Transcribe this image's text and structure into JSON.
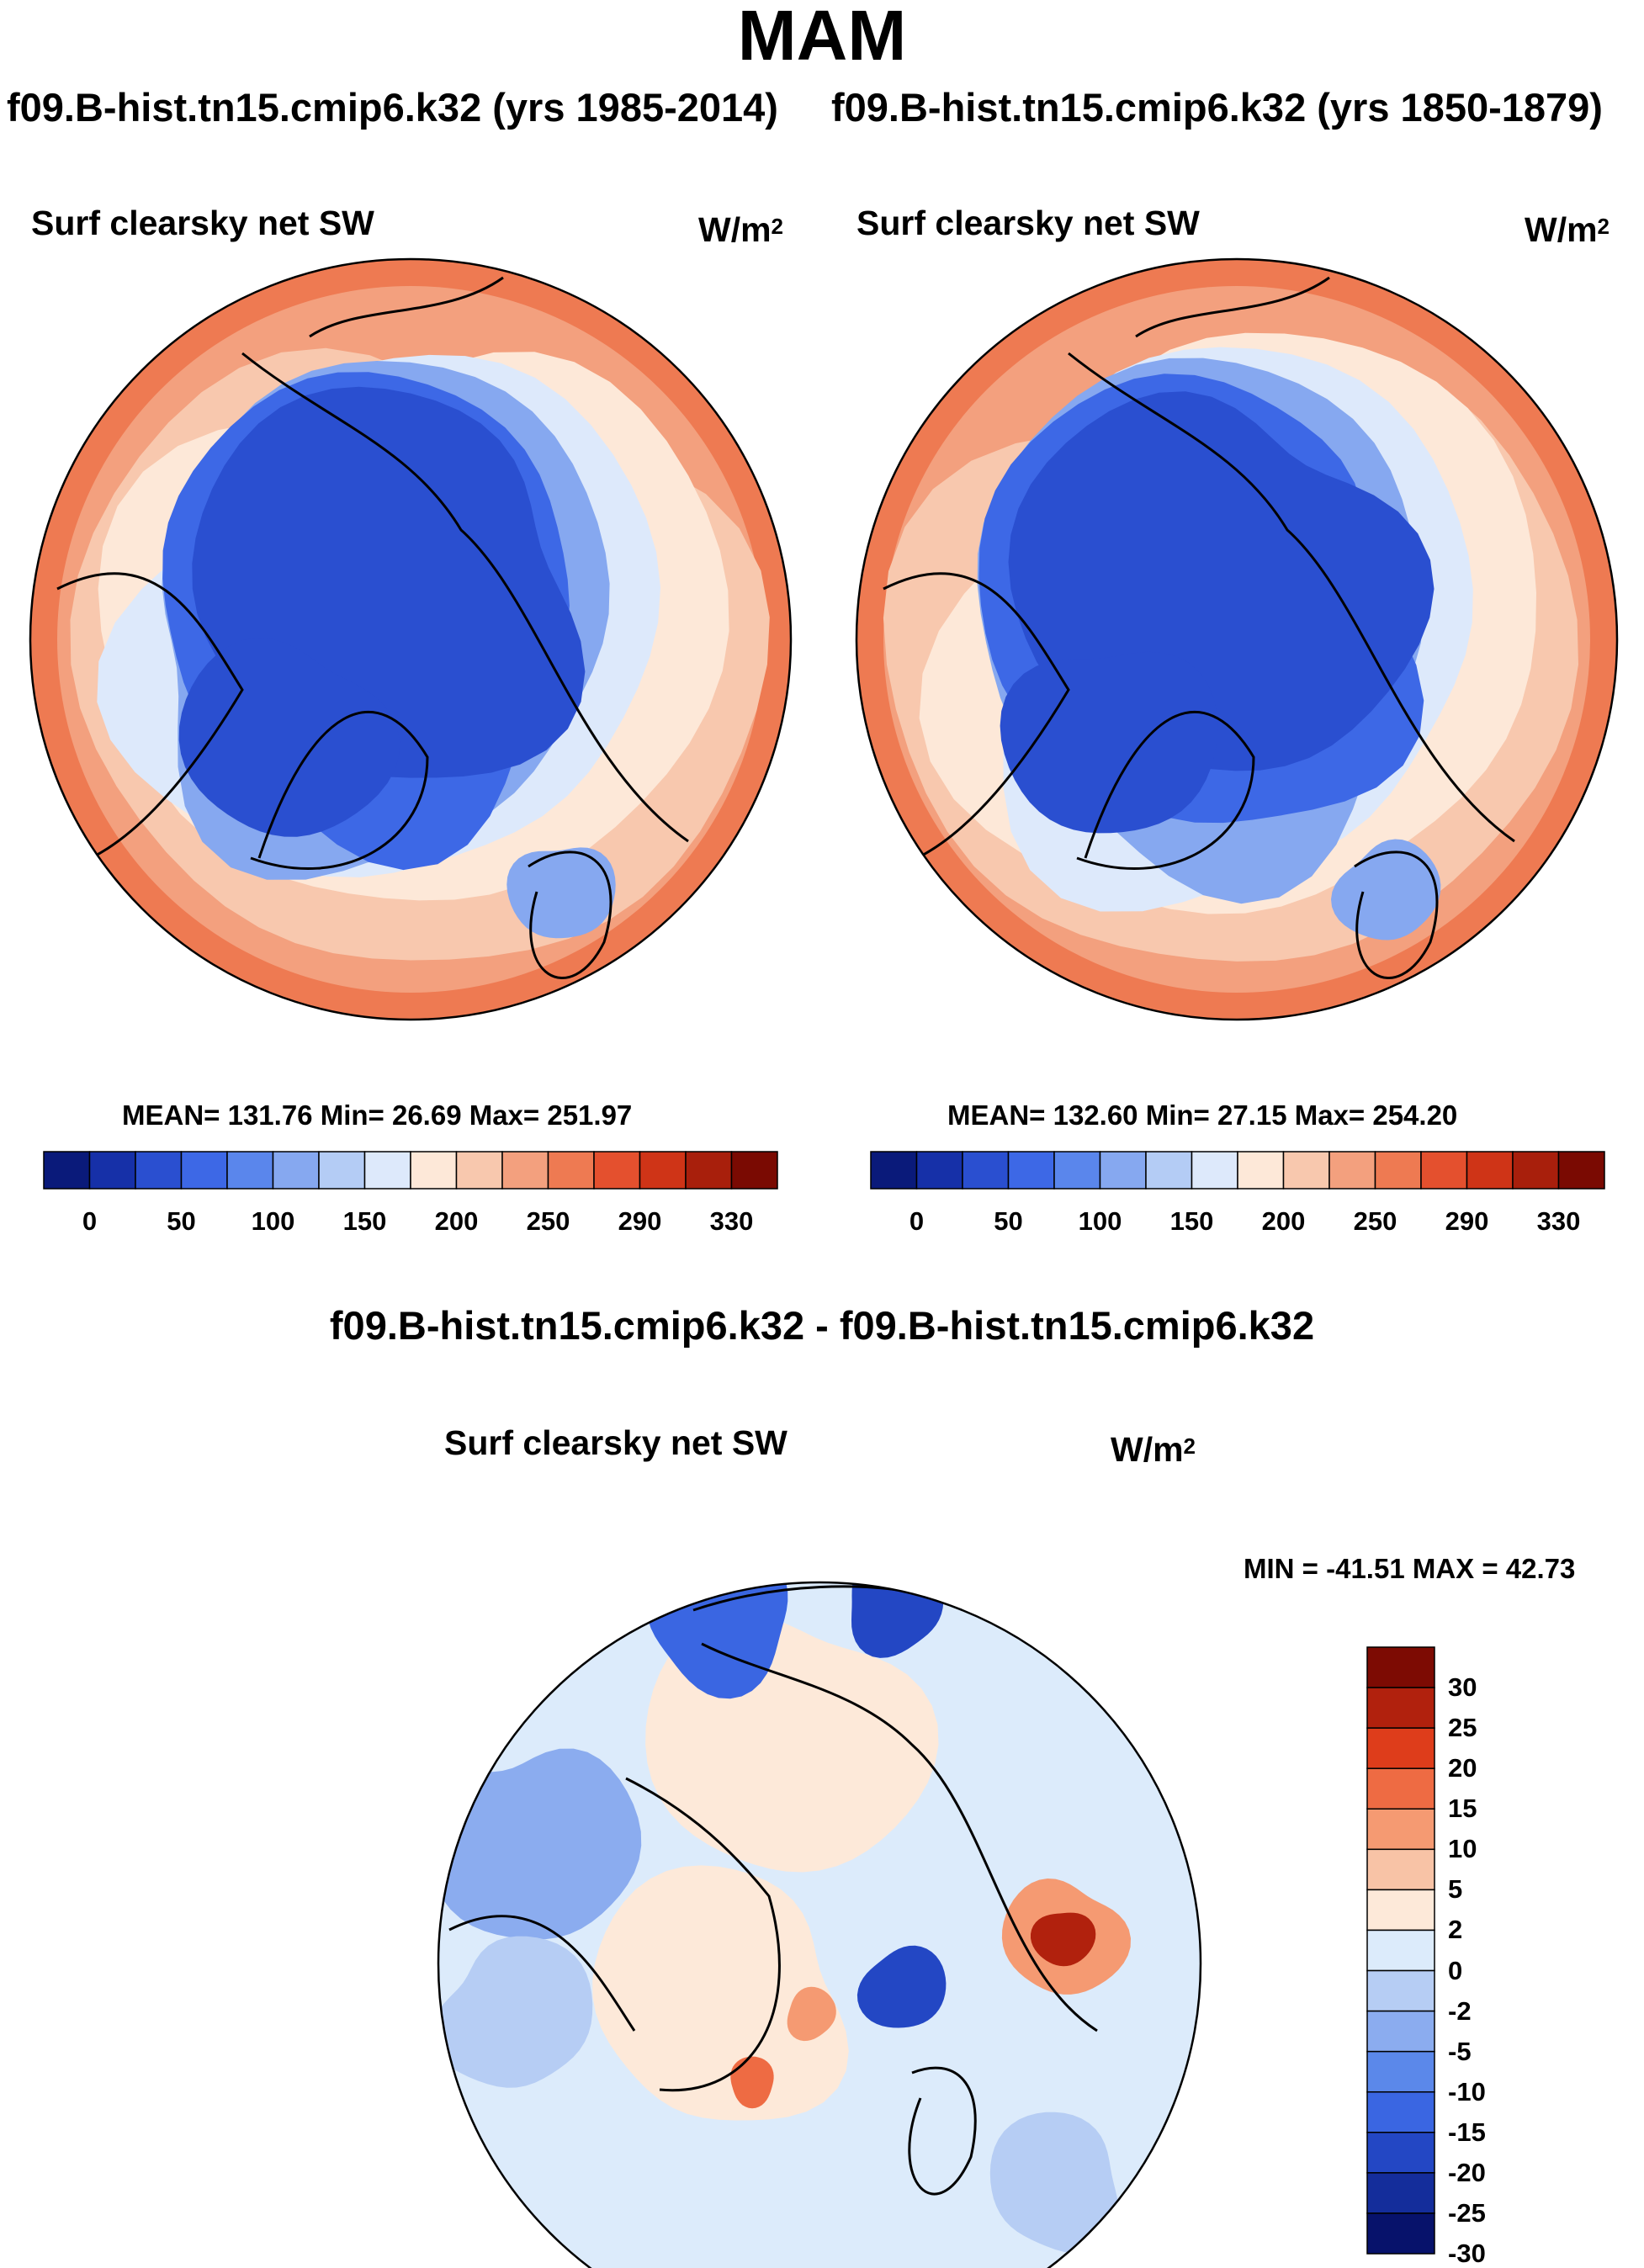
{
  "figure": {
    "season": "MAM",
    "case_left": "f09.B-hist.tn15.cmip6.k32 (yrs 1985-2014)",
    "case_right": "f09.B-hist.tn15.cmip6.k32 (yrs 1850-1879)",
    "diff_title": "f09.B-hist.tn15.cmip6.k32 - f09.B-hist.tn15.cmip6.k32"
  },
  "panels": [
    {
      "title": "Surf clearsky net SW",
      "units_base": "W/m",
      "units_exp": "2",
      "stats": "MEAN= 131.76  Min=  26.69  Max= 251.97"
    },
    {
      "title": "Surf clearsky net SW",
      "units_base": "W/m",
      "units_exp": "2",
      "stats": "MEAN= 132.60  Min=  27.15  Max= 254.20"
    },
    {
      "title": "Surf clearsky net SW",
      "units_base": "W/m",
      "units_exp": "2",
      "stats": "MIN = -41.51 MAX =  42.73"
    }
  ],
  "chart_data": [
    {
      "type": "heatmap",
      "projection": "north polar stereographic",
      "title": "Surf clearsky net SW",
      "units": "W/m2",
      "mean": 131.76,
      "min": 26.69,
      "max": 251.97,
      "colorbar": {
        "tick_labels": [
          "0",
          "50",
          "100",
          "150",
          "200",
          "250",
          "290",
          "330"
        ],
        "colors": [
          "#0a1a7a",
          "#1630a8",
          "#2a4fd0",
          "#3d68e6",
          "#5a86ec",
          "#86a8f0",
          "#b4ccf5",
          "#dde9fb",
          "#fde8d8",
          "#f8c8ae",
          "#f3a07e",
          "#ee7a52",
          "#e4502e",
          "#cf3417",
          "#a81f0c",
          "#7a0a02"
        ]
      }
    },
    {
      "type": "heatmap",
      "projection": "north polar stereographic",
      "title": "Surf clearsky net SW",
      "units": "W/m2",
      "mean": 132.6,
      "min": 27.15,
      "max": 254.2,
      "colorbar": {
        "tick_labels": [
          "0",
          "50",
          "100",
          "150",
          "200",
          "250",
          "290",
          "330"
        ],
        "colors": [
          "#0a1a7a",
          "#1630a8",
          "#2a4fd0",
          "#3d68e6",
          "#5a86ec",
          "#86a8f0",
          "#b4ccf5",
          "#dde9fb",
          "#fde8d8",
          "#f8c8ae",
          "#f3a07e",
          "#ee7a52",
          "#e4502e",
          "#cf3417",
          "#a81f0c",
          "#7a0a02"
        ]
      }
    },
    {
      "type": "heatmap",
      "projection": "north polar stereographic",
      "title": "Surf clearsky net SW",
      "units": "W/m2",
      "min": -41.51,
      "max": 42.73,
      "colorbar": {
        "tick_labels": [
          "30",
          "25",
          "20",
          "15",
          "10",
          "5",
          "2",
          "0",
          "-2",
          "-5",
          "-10",
          "-15",
          "-20",
          "-25",
          "-30"
        ],
        "colors": [
          "#7d0b03",
          "#b1210d",
          "#de3d1b",
          "#ee6b43",
          "#f59a72",
          "#f8c3a6",
          "#fde9d9",
          "#dcebfb",
          "#b6cdf4",
          "#8bacef",
          "#5b88ea",
          "#3a66e2",
          "#2347c4",
          "#142d9b",
          "#07126b"
        ]
      }
    }
  ]
}
